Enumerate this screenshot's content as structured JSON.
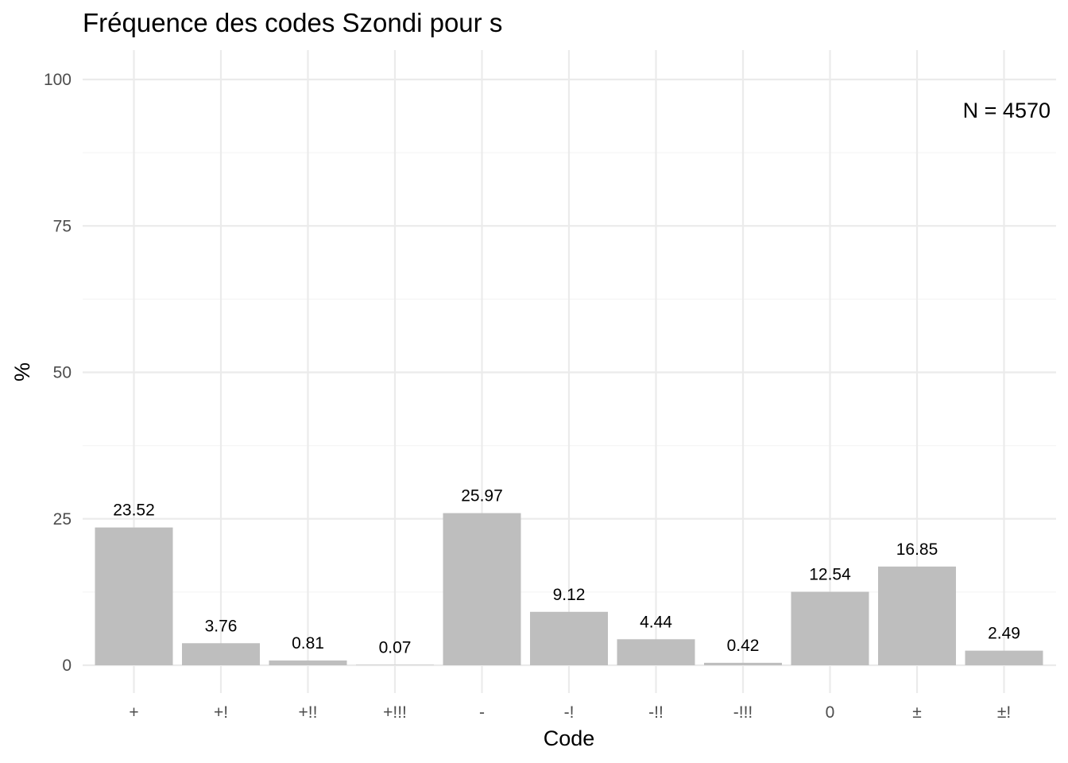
{
  "chart_data": {
    "type": "bar",
    "title": "Fréquence des codes Szondi pour s",
    "xlabel": "Code",
    "ylabel": "%",
    "categories": [
      "+",
      "+!",
      "+!!",
      "+!!!",
      "-",
      "-!",
      "-!!",
      "-!!!",
      "0",
      "±",
      "±!"
    ],
    "values": [
      23.52,
      3.76,
      0.81,
      0.07,
      25.97,
      9.12,
      4.44,
      0.42,
      12.54,
      16.85,
      2.49
    ],
    "data_labels": [
      "23.52",
      "3.76",
      "0.81",
      "0.07",
      "25.97",
      "9.12",
      "4.44",
      "0.42",
      "12.54",
      "16.85",
      "2.49"
    ],
    "yticks": [
      0,
      25,
      50,
      75,
      100
    ],
    "ytick_labels": [
      "0",
      "25",
      "50",
      "75",
      "100"
    ],
    "ylim": [
      0,
      100
    ],
    "annotation": "N = 4570",
    "annotation_position": "top-right",
    "grid": true,
    "legend": false,
    "colors": {
      "bar": "#bebebe",
      "grid_major": "#ebebeb",
      "grid_minor": "#f5f5f5",
      "tick_text": "#4d4d4d",
      "text": "#000000",
      "background": "#ffffff"
    }
  }
}
